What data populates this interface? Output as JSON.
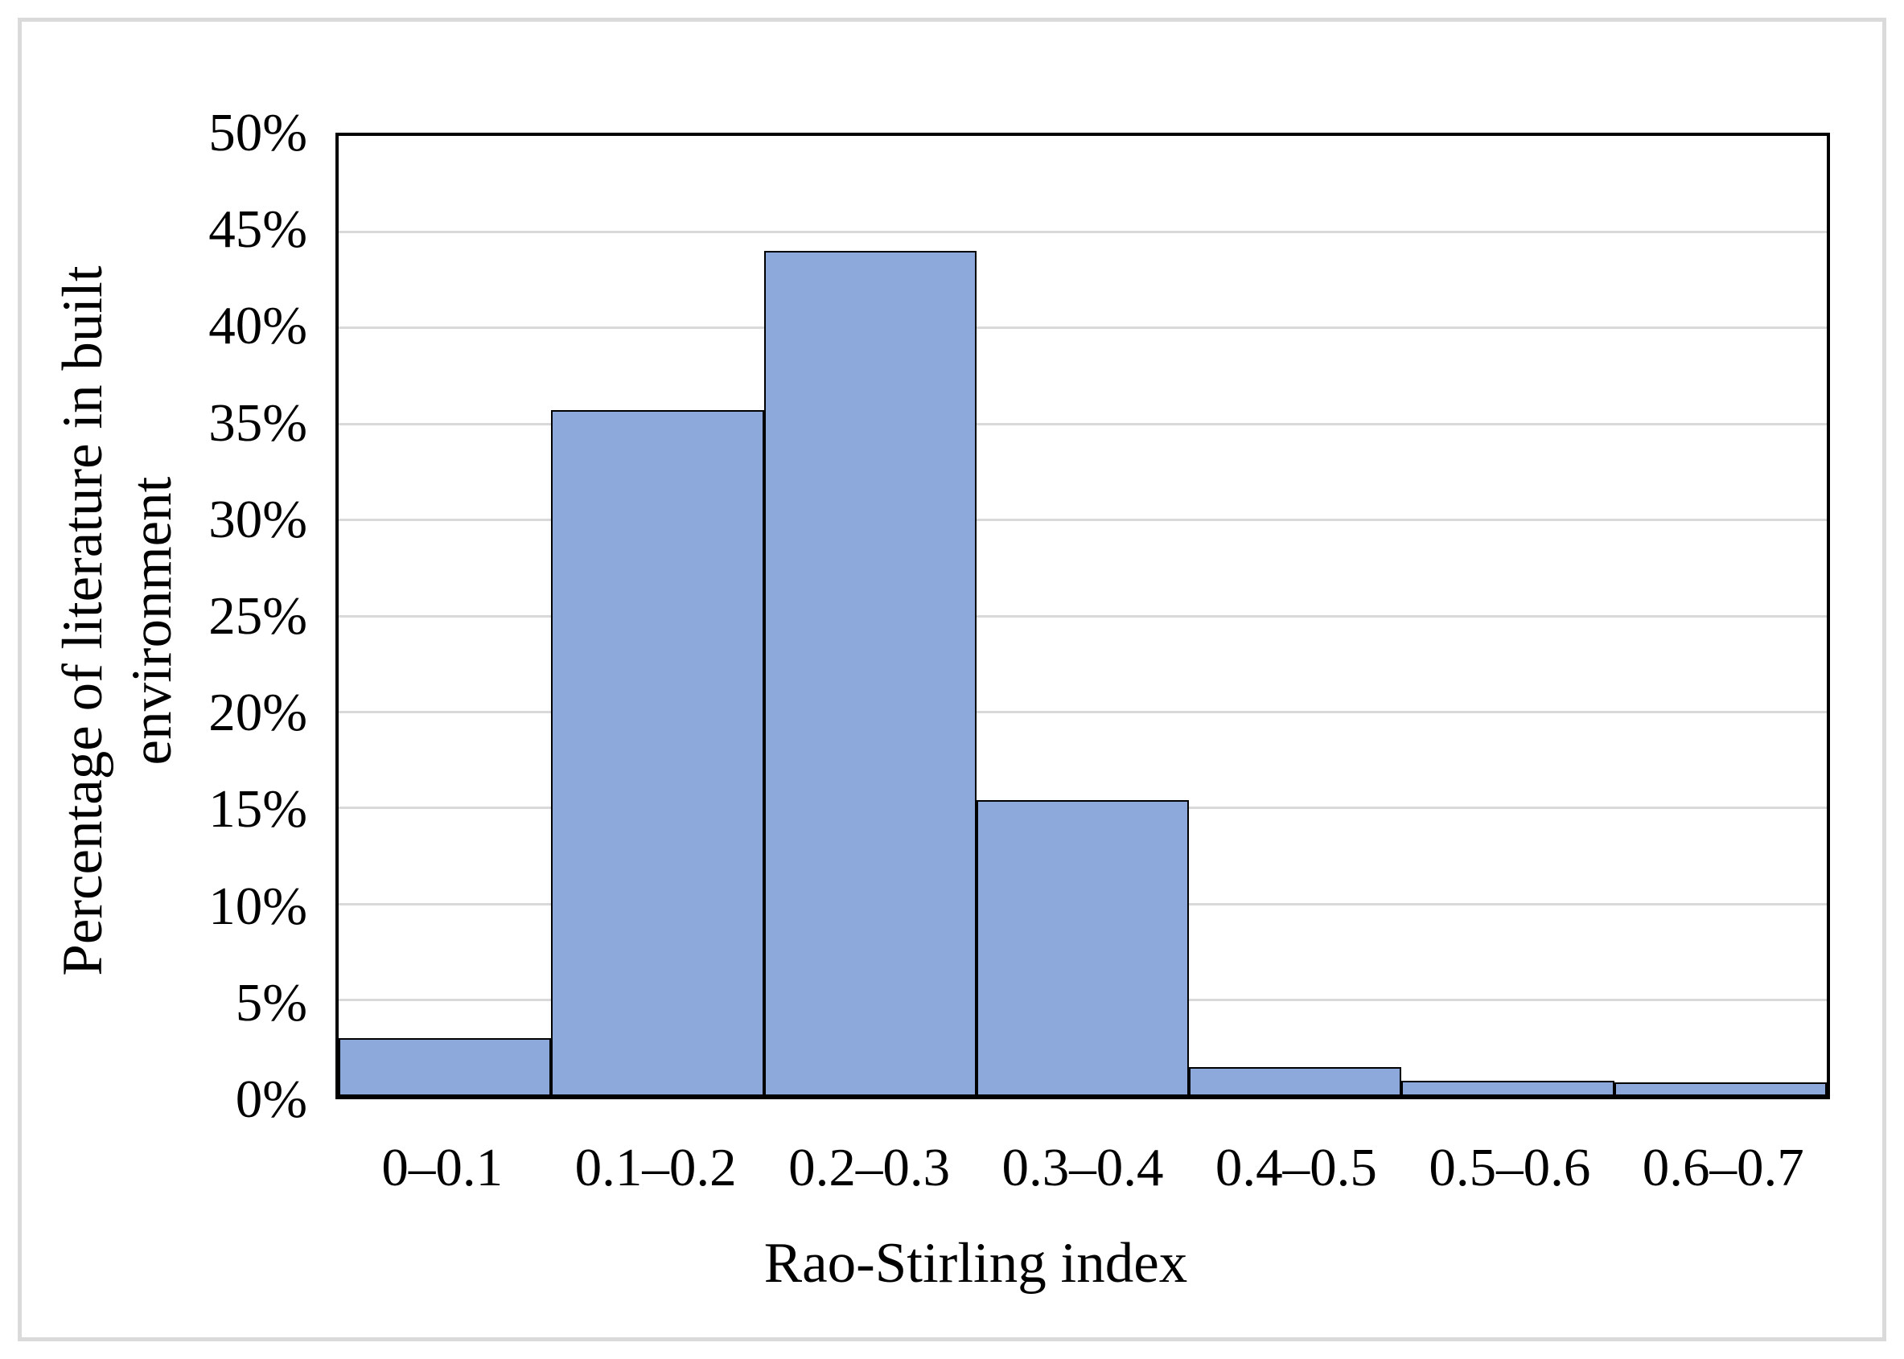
{
  "chart_data": {
    "type": "bar",
    "subtype": "histogram",
    "title": "",
    "xlabel": "Rao-Stirling index",
    "ylabel": "Percentage of literature in built environment",
    "ylabel_lines": [
      "Percentage of literature in built",
      "environment"
    ],
    "categories": [
      "0–0.1",
      "0.1–0.2",
      "0.2–0.3",
      "0.3–0.4",
      "0.4–0.5",
      "0.5–0.6",
      "0.6–0.7"
    ],
    "values": [
      3.0,
      35.7,
      44.0,
      15.4,
      1.5,
      0.8,
      0.7
    ],
    "value_unit": "%",
    "y_tick_labels": [
      "0%",
      "5%",
      "10%",
      "15%",
      "20%",
      "25%",
      "30%",
      "35%",
      "40%",
      "45%",
      "50%"
    ],
    "ylim": [
      0,
      50
    ],
    "y_tick_step": 5,
    "grid": true,
    "legend": "none",
    "gap_width": 0,
    "colors": {
      "bar_fill": "#8da9db",
      "bar_border": "#000000",
      "gridline": "#d9d9d9",
      "plot_border": "#000000",
      "figure_border": "#dadada",
      "text": "#000000",
      "background": "#ffffff"
    }
  }
}
